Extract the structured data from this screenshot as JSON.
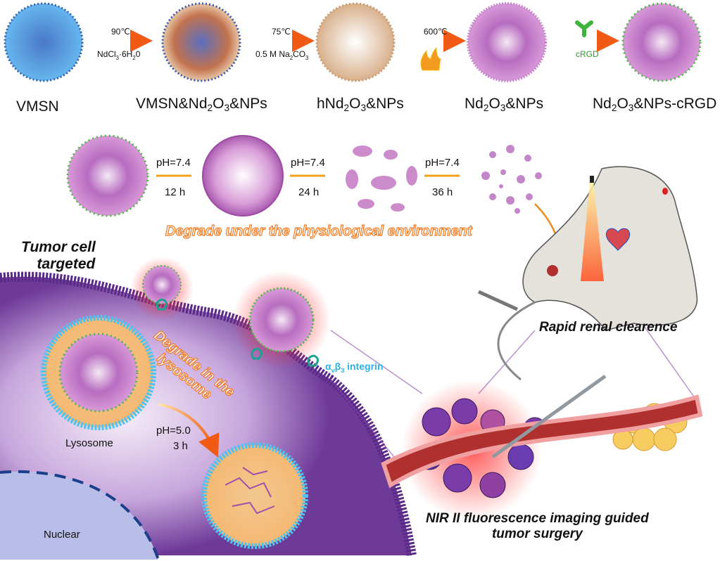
{
  "synthesis": {
    "stages": [
      {
        "name": "VMSN"
      },
      {
        "name_parts": [
          "VMSN&Nd",
          "2",
          "O",
          "3",
          "&NPs"
        ]
      },
      {
        "name_parts": [
          "hNd",
          "2",
          "O",
          "3",
          "&NPs"
        ]
      },
      {
        "name_parts": [
          "Nd",
          "2",
          "O",
          "3",
          "&NPs"
        ]
      },
      {
        "name_parts": [
          "Nd",
          "2",
          "O",
          "3",
          "&NPs-cRGD"
        ]
      }
    ],
    "steps": [
      {
        "top": "90℃",
        "bottom_parts": [
          "NdCl",
          "3",
          "·6H",
          "2",
          "0"
        ]
      },
      {
        "top": "75℃",
        "bottom_parts": [
          "0.5 M Na",
          "2",
          "CO",
          "3"
        ]
      },
      {
        "top": "600℃",
        "icon": "flame-icon"
      },
      {
        "icon": "crgd-ligand-icon",
        "bottom": "cRGD"
      }
    ]
  },
  "degradation": {
    "steps": [
      {
        "top": "pH=7.4",
        "bottom": "12 h"
      },
      {
        "top": "pH=7.4",
        "bottom": "24 h"
      },
      {
        "top": "pH=7.4",
        "bottom": "36 h"
      }
    ],
    "caption": "Degrade under the physiological environment"
  },
  "cell": {
    "title_line1": "Tumor cell",
    "title_line2": "targeted",
    "integrin_alpha": "α",
    "integrin_sub_v": "v",
    "integrin_beta": "β",
    "integrin_sub_3": "3",
    "integrin_rest": " integrin",
    "lysosome_caption_line1": "Degrade in the",
    "lysosome_caption_line2": "lysosome",
    "lysosome_ph": "pH=5.0",
    "lysosome_time": "3 h",
    "lysosome": "Lysosome",
    "nuclear": "Nuclear"
  },
  "mouse": {
    "caption": "Rapid renal clearence"
  },
  "surgery": {
    "caption_line1": "NIR II  fluorescence imaging guided",
    "caption_line2": "tumor surgery"
  },
  "colors": {
    "vmsn": "#3b7fd6",
    "nanoparticle": "#b45cc0",
    "ligand": "#3fb43c",
    "arrow": "#f06a1c",
    "cell": "#7a3fa0",
    "lysosome_ring": "#4fc3ee",
    "integrin_text": "#2ab3e6",
    "caption_orange": "#f07a20"
  }
}
